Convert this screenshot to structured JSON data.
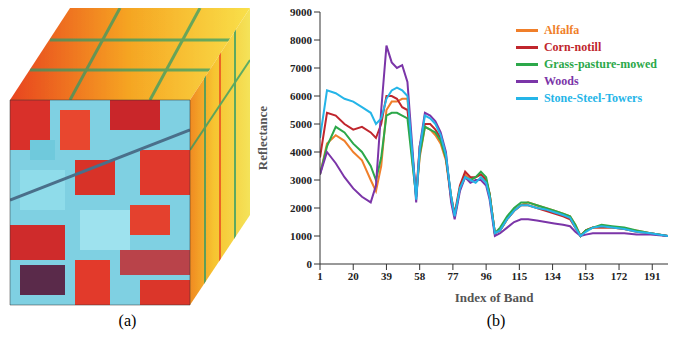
{
  "image": {
    "label": "(a)"
  },
  "chart_data": {
    "type": "line",
    "title": "(b)",
    "x_label": "Index of Band",
    "y_label": "Reflectance",
    "xlim": [
      1,
      200
    ],
    "xticks": [
      1,
      20,
      39,
      58,
      77,
      96,
      115,
      134,
      153,
      172,
      191
    ],
    "ylim": [
      0,
      9000
    ],
    "yticks": [
      0,
      1000,
      2000,
      3000,
      4000,
      5000,
      6000,
      7000,
      8000,
      9000
    ],
    "grid": false,
    "legend": "upper right",
    "x": [
      1,
      5,
      10,
      15,
      20,
      25,
      30,
      33,
      36,
      39,
      42,
      45,
      48,
      51,
      54,
      56,
      58,
      61,
      64,
      67,
      70,
      73,
      76,
      78,
      81,
      84,
      87,
      90,
      93,
      96,
      98,
      101,
      104,
      108,
      112,
      116,
      120,
      125,
      130,
      135,
      140,
      144,
      147,
      150,
      153,
      157,
      162,
      168,
      175,
      182,
      190,
      200
    ],
    "series": [
      {
        "name": "Alfalfa",
        "color": "#f07f2a",
        "values": [
          3200,
          4300,
          4600,
          4400,
          4000,
          3700,
          3000,
          2600,
          3500,
          5500,
          5800,
          5800,
          5900,
          5900,
          3600,
          2400,
          3800,
          4900,
          4800,
          4600,
          4300,
          3700,
          2300,
          1700,
          2700,
          3200,
          3000,
          3100,
          3200,
          3000,
          2500,
          1100,
          1200,
          1600,
          1900,
          2100,
          2200,
          2100,
          2000,
          1900,
          1800,
          1700,
          1400,
          1000,
          1200,
          1300,
          1300,
          1300,
          1250,
          1200,
          1100,
          1000
        ]
      },
      {
        "name": "Corn-notill",
        "color": "#c0262d",
        "values": [
          3800,
          5400,
          5300,
          5000,
          4800,
          4900,
          4700,
          4500,
          5000,
          6000,
          6000,
          5900,
          5600,
          5500,
          3800,
          2500,
          4200,
          5000,
          5000,
          4800,
          4500,
          3800,
          2400,
          1800,
          2800,
          3300,
          3100,
          3100,
          3200,
          3000,
          2500,
          1100,
          1200,
          1600,
          1900,
          2100,
          2100,
          2000,
          1900,
          1800,
          1700,
          1600,
          1300,
          1000,
          1200,
          1300,
          1300,
          1300,
          1250,
          1150,
          1100,
          1000
        ]
      },
      {
        "name": "Grass-pasture-mowed",
        "color": "#2ca84a",
        "values": [
          3200,
          4200,
          4900,
          4700,
          4300,
          4000,
          3500,
          3000,
          3800,
          5300,
          5400,
          5400,
          5300,
          5200,
          3500,
          2400,
          3900,
          4900,
          4800,
          4700,
          4400,
          3800,
          2400,
          1700,
          2700,
          3100,
          3000,
          3100,
          3300,
          3100,
          2500,
          1100,
          1300,
          1700,
          2000,
          2200,
          2200,
          2100,
          2000,
          1900,
          1800,
          1700,
          1400,
          1000,
          1200,
          1300,
          1400,
          1350,
          1300,
          1200,
          1100,
          1000
        ]
      },
      {
        "name": "Woods",
        "color": "#7b35a8",
        "values": [
          3200,
          4000,
          3600,
          3100,
          2700,
          2400,
          2200,
          2800,
          5500,
          7800,
          7200,
          7000,
          7100,
          6500,
          4000,
          2200,
          4200,
          5400,
          5300,
          5100,
          4700,
          4000,
          2200,
          1600,
          2600,
          3100,
          2900,
          3000,
          3000,
          2800,
          2300,
          1000,
          1100,
          1300,
          1500,
          1600,
          1600,
          1550,
          1500,
          1450,
          1400,
          1350,
          1150,
          1000,
          1050,
          1100,
          1100,
          1100,
          1100,
          1050,
          1050,
          1000
        ]
      },
      {
        "name": "Stone-Steel-Towers",
        "color": "#25b5e8",
        "values": [
          4500,
          6200,
          6100,
          5900,
          5800,
          5600,
          5400,
          5000,
          5200,
          5900,
          6200,
          6300,
          6200,
          6000,
          3800,
          2300,
          4100,
          5300,
          5200,
          5000,
          4600,
          3900,
          2400,
          1700,
          2700,
          3100,
          3000,
          2900,
          3100,
          2900,
          2400,
          1100,
          1200,
          1600,
          1900,
          2100,
          2100,
          2000,
          1950,
          1850,
          1750,
          1650,
          1300,
          1000,
          1150,
          1300,
          1350,
          1300,
          1250,
          1150,
          1100,
          1000
        ]
      }
    ]
  }
}
